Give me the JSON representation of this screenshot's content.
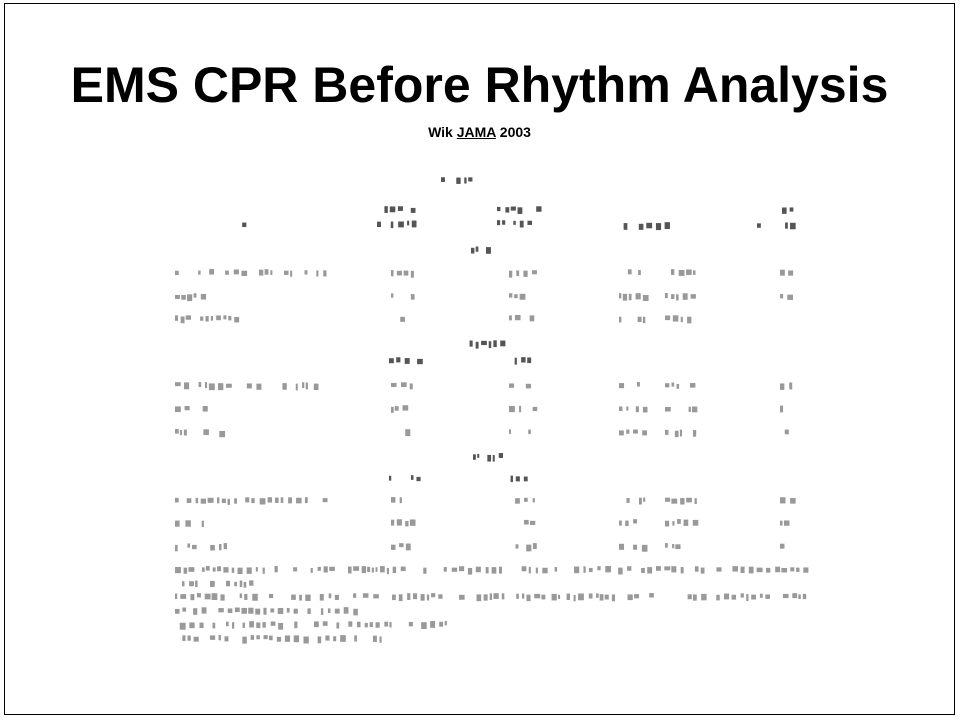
{
  "slide": {
    "title": "EMS CPR Before Rhythm Analysis",
    "citation": {
      "author": "Wik",
      "journal": "JAMA",
      "year": "2003"
    }
  }
}
